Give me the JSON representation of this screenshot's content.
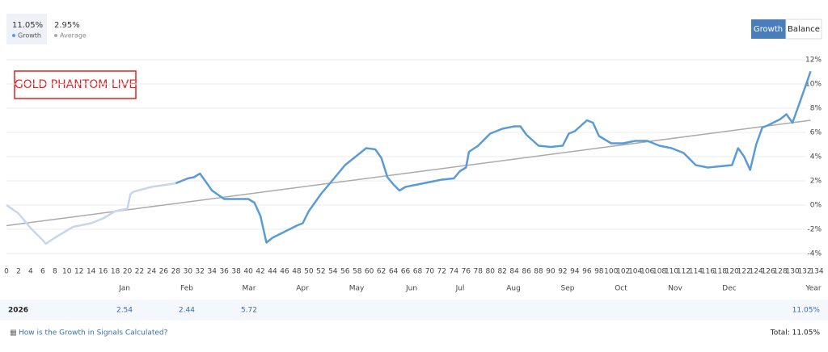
{
  "summary": [
    {
      "value": "11.05%",
      "label": "Growth"
    },
    {
      "value": "2.95%",
      "label": "Average"
    }
  ],
  "buttons": [
    "Growth",
    "Balance"
  ],
  "chart_data": {
    "type": "line",
    "annotation": "GOLD PHANTOM LIVE",
    "xlim": [
      0,
      134
    ],
    "ylim": [
      -4,
      12
    ],
    "xticks": [
      0,
      2,
      4,
      6,
      8,
      10,
      12,
      14,
      16,
      18,
      20,
      22,
      24,
      26,
      28,
      30,
      32,
      34,
      36,
      38,
      40,
      42,
      44,
      46,
      48,
      50,
      52,
      54,
      56,
      58,
      60,
      62,
      64,
      66,
      68,
      70,
      72,
      74,
      76,
      78,
      80,
      82,
      84,
      86,
      88,
      90,
      92,
      94,
      96,
      98,
      100,
      102,
      104,
      106,
      108,
      110,
      112,
      114,
      116,
      118,
      120,
      122,
      124,
      126,
      128,
      130,
      132,
      134
    ],
    "yticks": [
      {
        "value": -4,
        "label": "-4%"
      },
      {
        "value": -2,
        "label": "-2%"
      },
      {
        "value": 0,
        "label": "0%"
      },
      {
        "value": 2,
        "label": "2%"
      },
      {
        "value": 4,
        "label": "4%"
      },
      {
        "value": 6,
        "label": "6%"
      },
      {
        "value": 8,
        "label": "8%"
      },
      {
        "value": 10,
        "label": "10%"
      },
      {
        "value": 12,
        "label": "12%"
      }
    ],
    "grid": true,
    "series": [
      {
        "name": "Growth",
        "color": "#5b9bd5",
        "faded_color": "#c6d6ee",
        "faded_until_x": 28,
        "x": [
          0,
          2,
          4,
          6,
          6.5,
          8,
          10,
          11,
          12,
          14,
          16,
          18,
          20,
          20.5,
          21,
          24,
          28,
          30,
          31,
          32,
          33,
          34,
          36,
          38,
          40,
          41,
          42,
          43,
          44,
          46,
          48,
          49,
          50,
          52,
          54,
          56,
          58,
          59.5,
          61,
          62,
          63,
          64,
          65,
          66,
          68,
          70,
          72,
          74,
          75,
          76,
          76.5,
          78,
          80,
          82,
          84,
          85,
          86,
          88,
          90,
          92,
          93,
          94,
          96,
          97,
          98,
          100,
          102,
          104,
          106,
          108,
          110,
          111,
          112,
          114,
          116,
          118,
          120,
          121,
          122,
          123,
          124,
          125,
          126,
          128,
          129,
          130,
          131,
          132,
          133
        ],
        "values": [
          0,
          -0.7,
          -1.9,
          -2.9,
          -3.2,
          -2.7,
          -2.1,
          -1.8,
          -1.7,
          -1.5,
          -1.1,
          -0.5,
          -0.3,
          0.9,
          1.1,
          1.5,
          1.8,
          2.2,
          2.3,
          2.6,
          1.9,
          1.2,
          0.5,
          0.5,
          0.5,
          0.2,
          -0.9,
          -3.1,
          -2.7,
          -2.2,
          -1.7,
          -1.5,
          -0.5,
          0.9,
          2.1,
          3.3,
          4.1,
          4.7,
          4.6,
          3.9,
          2.3,
          1.7,
          1.2,
          1.5,
          1.7,
          1.9,
          2.1,
          2.2,
          2.8,
          3.1,
          4.4,
          4.9,
          5.9,
          6.3,
          6.5,
          6.5,
          5.8,
          4.9,
          4.8,
          4.9,
          5.9,
          6.1,
          7.0,
          6.8,
          5.7,
          5.1,
          5.1,
          5.3,
          5.3,
          4.9,
          4.7,
          4.5,
          4.3,
          3.3,
          3.1,
          3.2,
          3.3,
          4.7,
          4.0,
          2.9,
          5.0,
          6.4,
          6.6,
          7.1,
          7.5,
          6.8,
          8.2,
          9.6,
          11.05
        ]
      },
      {
        "name": "Average",
        "color": "#aaaaaa",
        "x": [
          0,
          133
        ],
        "values": [
          -1.7,
          7.0
        ]
      }
    ]
  },
  "table": {
    "columns": [
      "Jan",
      "Feb",
      "Mar",
      "Apr",
      "May",
      "Jun",
      "Jul",
      "Aug",
      "Sep",
      "Oct",
      "Nov",
      "Dec",
      "Year"
    ],
    "row": {
      "label": "2026",
      "cells": [
        2.54,
        2.44,
        5.72,
        null,
        null,
        null,
        null,
        null,
        null,
        null,
        null,
        null,
        "11.05%"
      ]
    }
  },
  "footer": {
    "link": "How is the Growth in Signals Calculated?",
    "total": "Total: 11.05%"
  }
}
